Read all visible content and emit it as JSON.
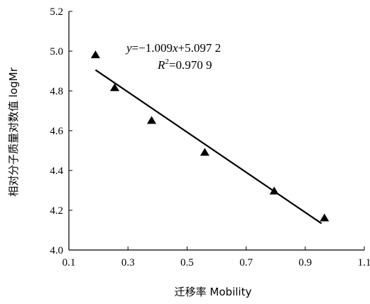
{
  "chart_data": {
    "type": "scatter",
    "xlabel": "迁移率 Mobility",
    "ylabel": "相对分子质量对数值 logMr",
    "xlim": [
      0.1,
      1.1
    ],
    "ylim": [
      4.0,
      5.2
    ],
    "x_ticks": [
      "0.1",
      "0.3",
      "0.5",
      "0.7",
      "0.9",
      "1.1"
    ],
    "y_ticks": [
      "4.0",
      "4.2",
      "4.4",
      "4.6",
      "4.8",
      "5.0",
      "5.2"
    ],
    "grid": false,
    "series": [
      {
        "marker": "triangle",
        "color": "#000000",
        "points": [
          {
            "x": 0.19,
            "y": 4.98
          },
          {
            "x": 0.255,
            "y": 4.815
          },
          {
            "x": 0.38,
            "y": 4.65
          },
          {
            "x": 0.56,
            "y": 4.49
          },
          {
            "x": 0.795,
            "y": 4.295
          },
          {
            "x": 0.965,
            "y": 4.16
          }
        ]
      }
    ],
    "trendline": {
      "slope": -1.009,
      "intercept": 5.0972,
      "x_range": [
        0.19,
        0.955
      ],
      "color": "#000000"
    },
    "annotation": {
      "equation": {
        "y": "y",
        "eq": "=−1.009",
        "x": "x",
        "rest": "+5.097 2"
      },
      "r2": {
        "R": "R",
        "sup": "2",
        "rest": "=0.970 9"
      }
    }
  }
}
